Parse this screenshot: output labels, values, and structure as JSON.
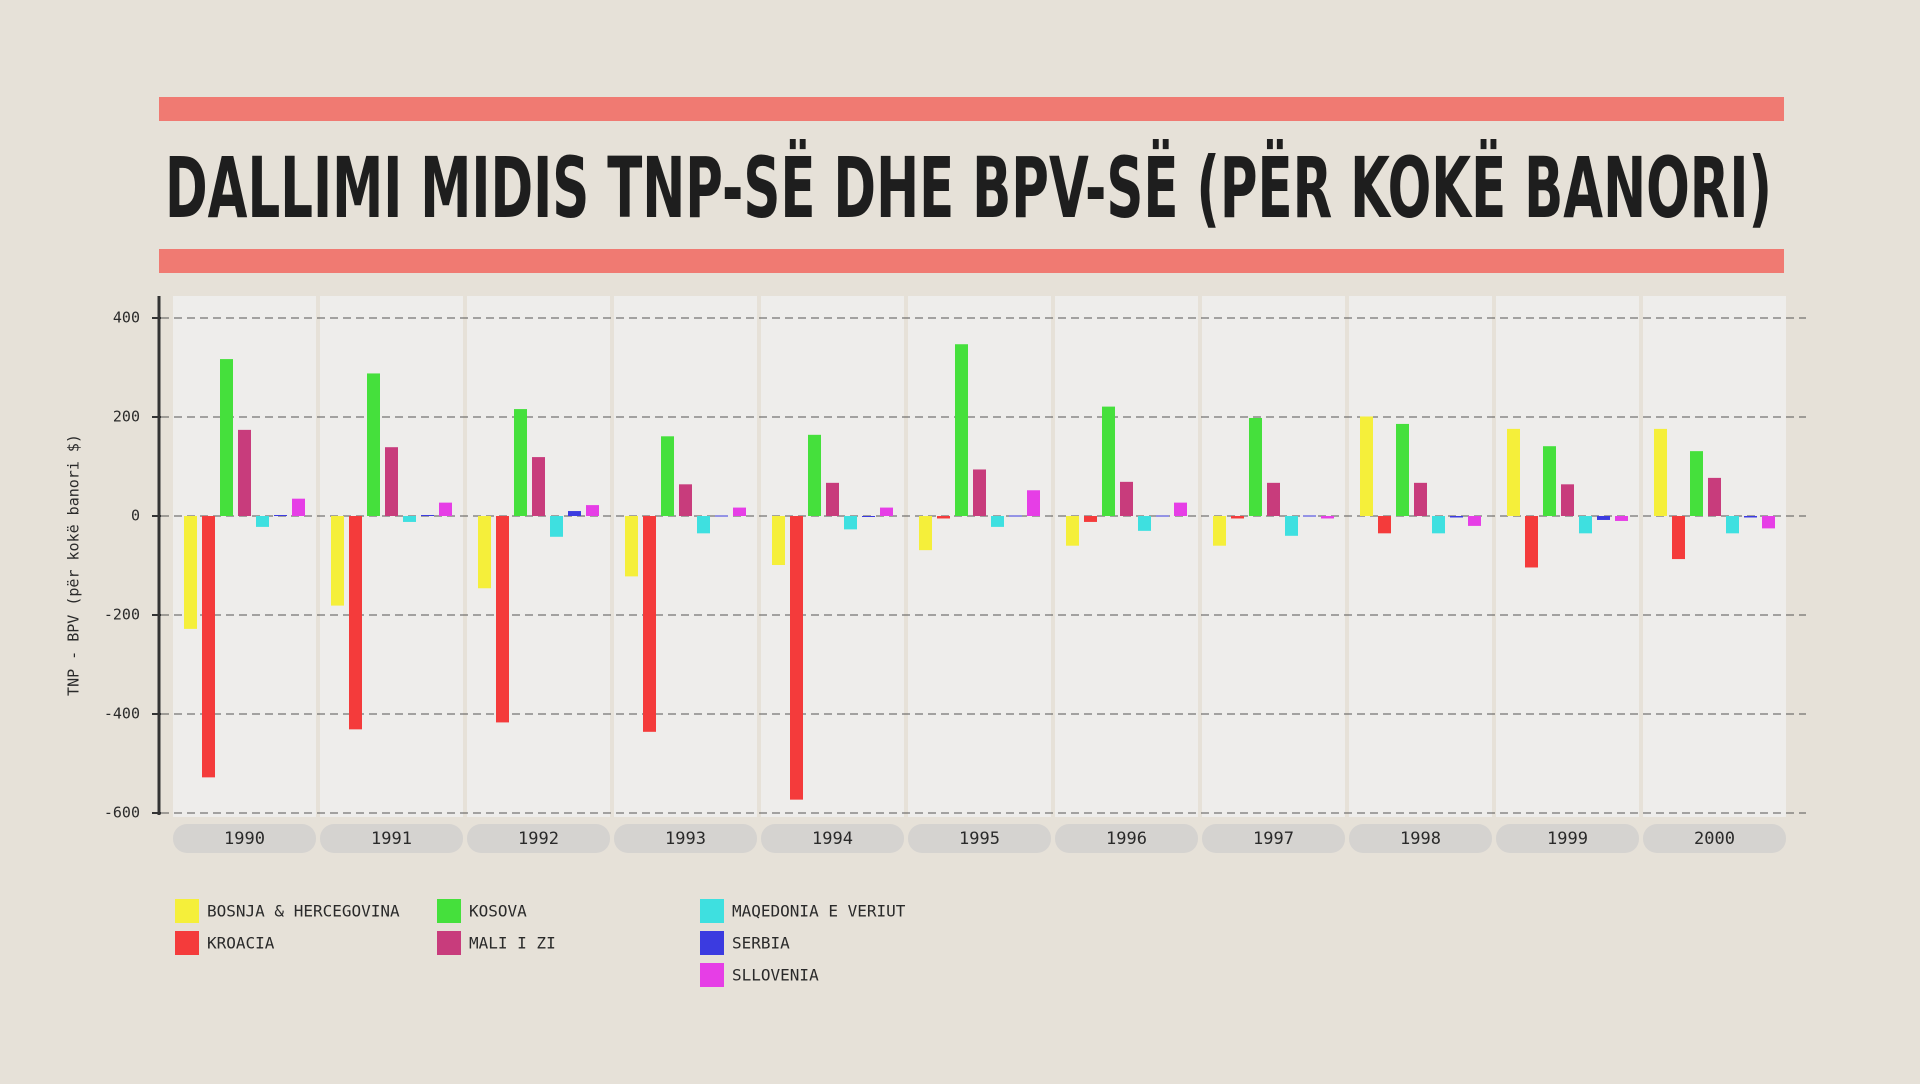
{
  "chart_data": {
    "type": "bar",
    "title": "DALLIMI MIDIS TNP-SË DHE BPV-SË (PËR KOKË BANORI)",
    "y_label": "TNP - BPV (për kokë banori $)",
    "categories": [
      "1990",
      "1991",
      "1992",
      "1993",
      "1994",
      "1995",
      "1996",
      "1997",
      "1998",
      "1999",
      "2000"
    ],
    "series": [
      {
        "name": "BOSNJA & HERCEGOVINA",
        "color": "#f5ef3a",
        "values": [
          -228,
          -181,
          -146,
          -122,
          -99,
          -69,
          -60,
          -60,
          201,
          176,
          176
        ]
      },
      {
        "name": "KROACIA",
        "color": "#f43b3b",
        "values": [
          -528,
          -431,
          -417,
          -436,
          -573,
          -5,
          -12,
          -5,
          -35,
          -104,
          -87
        ]
      },
      {
        "name": "KOSOVA",
        "color": "#45e03c",
        "values": [
          317,
          288,
          216,
          161,
          164,
          347,
          221,
          198,
          186,
          141,
          131
        ]
      },
      {
        "name": "MALI I ZI",
        "color": "#c83c7c",
        "values": [
          174,
          139,
          119,
          64,
          67,
          94,
          69,
          67,
          67,
          64,
          77
        ]
      },
      {
        "name": "MAQEDONIA E VERIUT",
        "color": "#3ee0e0",
        "values": [
          -22,
          -12,
          -42,
          -35,
          -27,
          -22,
          -30,
          -40,
          -35,
          -35,
          -35
        ]
      },
      {
        "name": "SERBIA",
        "color": "#3b3be0",
        "values": [
          2,
          2,
          10,
          1,
          -2,
          1,
          1,
          1,
          -3,
          -8,
          -3
        ]
      },
      {
        "name": "SLLOVENIA",
        "color": "#e63ee6",
        "values": [
          35,
          27,
          22,
          17,
          17,
          52,
          27,
          -5,
          -20,
          -10,
          -25
        ]
      }
    ],
    "ylim": [
      -600,
      400
    ],
    "yticks": [
      -600,
      -400,
      -200,
      0,
      200,
      400
    ],
    "grid": true
  }
}
